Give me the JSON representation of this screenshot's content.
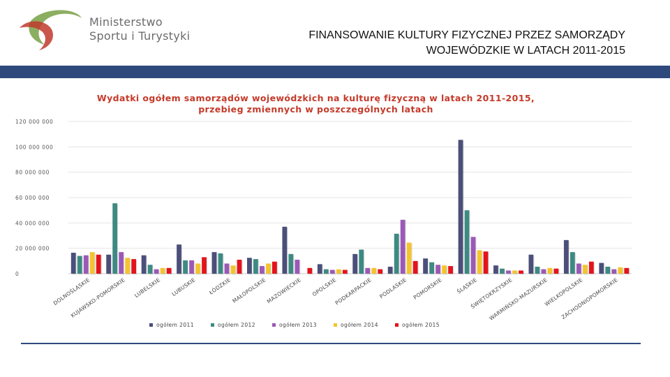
{
  "header": {
    "org_line1": "Ministerstwo",
    "org_line2": "Sportu i Turystyki",
    "title_line1": "FINANSOWANIE KULTURY FIZYCZNEJ PRZEZ SAMORZĄDY",
    "title_line2": "WOJEWÓDZKIE W LATACH 2011-2015"
  },
  "colors": {
    "band": "#2e4a7d",
    "logo_green": "#7fa550",
    "logo_red": "#c0392b"
  },
  "chart_data": {
    "type": "bar",
    "title_line1": "Wydatki ogółem samorządów wojewódzkich na kulturę fizyczną w latach 2011-2015,",
    "title_line2": "przebieg zmiennych w poszczególnych latach",
    "xlabel": "",
    "ylabel": "",
    "ylim": [
      0,
      120000000
    ],
    "y_ticks": [
      0,
      20000000,
      40000000,
      60000000,
      80000000,
      100000000,
      120000000
    ],
    "y_tick_labels": [
      "0",
      "20 000 000",
      "40 000 000",
      "60 000 000",
      "80 000 000",
      "100 000 000",
      "120 000 000"
    ],
    "grid": true,
    "legend_position": "bottom",
    "categories": [
      "DOLNOŚLĄSKIE",
      "KUJAWSKO-POMORSKIE",
      "LUBELSKIE",
      "LUBUSKIE",
      "ŁÓDZKIE",
      "MAŁOPOLSKIE",
      "MAZOWIECKIE",
      "OPOLSKIE",
      "PODKARPACKIE",
      "PODLASKIE",
      "POMORSKIE",
      "ŚLĄSKIE",
      "ŚWIĘTOKRZYSKIE",
      "WARMIŃSKO-MAZURSKIE",
      "WIELKOPOLSKIE",
      "ZACHODNIOPOMORSKIE"
    ],
    "series": [
      {
        "name": "ogółem 2011",
        "color": "#4b4f7a",
        "values": [
          16500000,
          15000000,
          14500000,
          23000000,
          17000000,
          12500000,
          37000000,
          7500000,
          15500000,
          5500000,
          12000000,
          105500000,
          6500000,
          15000000,
          26500000,
          8500000
        ]
      },
      {
        "name": "ogółem 2012",
        "color": "#3e8a83",
        "values": [
          14000000,
          55500000,
          7000000,
          10500000,
          16000000,
          11500000,
          15500000,
          3500000,
          19000000,
          31500000,
          9000000,
          50000000,
          4000000,
          5500000,
          17000000,
          5500000
        ]
      },
      {
        "name": "ogółem 2013",
        "color": "#9b59b6",
        "values": [
          14500000,
          17000000,
          3500000,
          10500000,
          8000000,
          6000000,
          11000000,
          3000000,
          4500000,
          42500000,
          7000000,
          29000000,
          2500000,
          3500000,
          8000000,
          3500000
        ]
      },
      {
        "name": "ogółem 2014",
        "color": "#f4c430",
        "values": [
          17000000,
          12500000,
          4500000,
          8000000,
          6500000,
          8000000,
          0,
          3500000,
          4500000,
          24500000,
          6500000,
          18500000,
          2500000,
          4500000,
          7000000,
          5000000
        ]
      },
      {
        "name": "ogółem 2015",
        "color": "#e3141b",
        "values": [
          15000000,
          11500000,
          4500000,
          13000000,
          11000000,
          9500000,
          4500000,
          3000000,
          3500000,
          10000000,
          6000000,
          17500000,
          2500000,
          4000000,
          9500000,
          4500000
        ]
      }
    ]
  }
}
